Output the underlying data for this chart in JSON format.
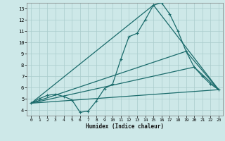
{
  "xlabel": "Humidex (Indice chaleur)",
  "xlim": [
    -0.5,
    23.5
  ],
  "ylim": [
    3.5,
    13.5
  ],
  "xticks": [
    0,
    1,
    2,
    3,
    4,
    5,
    6,
    7,
    8,
    9,
    10,
    11,
    12,
    13,
    14,
    15,
    16,
    17,
    18,
    19,
    20,
    21,
    22,
    23
  ],
  "yticks": [
    4,
    5,
    6,
    7,
    8,
    9,
    10,
    11,
    12,
    13
  ],
  "bg_color": "#cde8e8",
  "grid_color": "#aacccc",
  "line_color": "#1a6b6b",
  "line1_x": [
    0,
    1,
    2,
    3,
    4,
    5,
    6,
    7,
    8,
    9,
    10,
    11,
    12,
    13,
    14,
    15,
    16,
    17,
    18,
    19,
    20,
    21,
    22,
    23
  ],
  "line1_y": [
    4.6,
    5.0,
    5.3,
    5.4,
    5.2,
    4.9,
    3.8,
    3.9,
    4.8,
    5.9,
    6.3,
    8.5,
    10.5,
    10.8,
    12.0,
    13.3,
    13.5,
    12.5,
    11.0,
    9.2,
    7.8,
    7.0,
    6.3,
    5.8
  ],
  "line2_x": [
    0,
    15,
    23
  ],
  "line2_y": [
    4.6,
    13.3,
    5.8
  ],
  "line3_x": [
    0,
    19,
    23
  ],
  "line3_y": [
    4.6,
    9.2,
    5.8
  ],
  "line4_x": [
    0,
    20,
    23
  ],
  "line4_y": [
    4.6,
    7.8,
    5.8
  ],
  "line5_x": [
    0,
    23
  ],
  "line5_y": [
    4.6,
    5.8
  ]
}
